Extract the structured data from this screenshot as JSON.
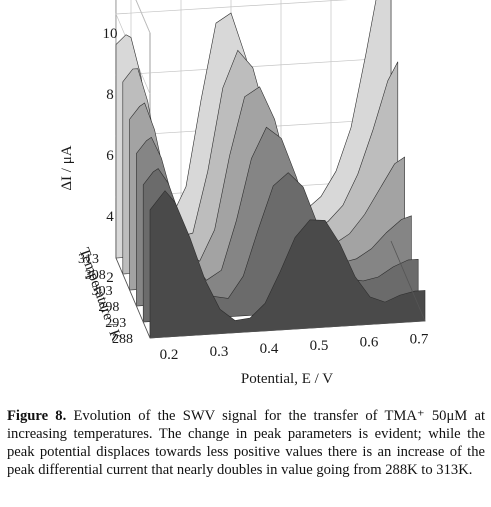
{
  "chart_data": {
    "type": "area",
    "subtype": "3d-waterfall",
    "title": "",
    "xlabel": "Potential, E / V",
    "ylabel": "ΔI / μA",
    "zlabel": "Temperature / K",
    "x_ticks": [
      "0.2",
      "0.3",
      "0.4",
      "0.5",
      "0.6",
      "0.7"
    ],
    "y_ticks": [
      "2",
      "4",
      "6",
      "8",
      "10"
    ],
    "z_ticks": [
      "288",
      "293",
      "298",
      "303",
      "308",
      "313"
    ],
    "xlim": [
      0.17,
      0.72
    ],
    "ylim": [
      0,
      10
    ],
    "grid": true,
    "series_colors": [
      "#4a4a4a",
      "#6b6b6b",
      "#858585",
      "#a3a3a3",
      "#bdbdbd",
      "#d8d8d8"
    ],
    "series": [
      {
        "name": "288",
        "x": [
          0.17,
          0.19,
          0.2,
          0.22,
          0.25,
          0.28,
          0.31,
          0.34,
          0.37,
          0.4,
          0.43,
          0.46,
          0.49,
          0.52,
          0.55,
          0.58,
          0.61,
          0.64,
          0.67,
          0.7,
          0.72
        ],
        "y": [
          4.2,
          4.6,
          4.8,
          4.4,
          3.2,
          1.8,
          0.8,
          0.4,
          0.45,
          0.9,
          1.9,
          3.0,
          3.55,
          3.5,
          2.7,
          1.6,
          0.9,
          0.7,
          0.9,
          1.0,
          1.0
        ]
      },
      {
        "name": "293",
        "x": [
          0.17,
          0.19,
          0.2,
          0.22,
          0.25,
          0.28,
          0.31,
          0.34,
          0.37,
          0.4,
          0.43,
          0.46,
          0.49,
          0.52,
          0.55,
          0.58,
          0.61,
          0.64,
          0.67,
          0.7,
          0.72
        ],
        "y": [
          4.5,
          4.9,
          5.0,
          4.5,
          3.1,
          1.6,
          0.7,
          0.6,
          1.3,
          2.8,
          4.2,
          4.6,
          4.1,
          2.8,
          1.5,
          1.0,
          0.9,
          1.0,
          1.3,
          1.5,
          1.5
        ]
      },
      {
        "name": "298",
        "x": [
          0.17,
          0.19,
          0.2,
          0.22,
          0.25,
          0.28,
          0.31,
          0.34,
          0.37,
          0.4,
          0.43,
          0.46,
          0.49,
          0.52,
          0.55,
          0.58,
          0.61,
          0.64,
          0.67,
          0.7,
          0.72
        ],
        "y": [
          5.0,
          5.4,
          5.5,
          4.8,
          3.0,
          1.4,
          0.7,
          1.0,
          2.6,
          4.6,
          5.6,
          5.2,
          3.9,
          2.3,
          1.2,
          1.0,
          1.1,
          1.4,
          1.9,
          2.3,
          2.4
        ]
      },
      {
        "name": "303",
        "x": [
          0.17,
          0.19,
          0.2,
          0.22,
          0.25,
          0.28,
          0.31,
          0.34,
          0.37,
          0.4,
          0.43,
          0.46,
          0.49,
          0.52,
          0.55,
          0.58,
          0.61,
          0.64,
          0.67,
          0.7,
          0.72
        ],
        "y": [
          5.6,
          6.0,
          6.1,
          5.2,
          2.9,
          1.2,
          0.8,
          1.8,
          4.2,
          6.1,
          6.4,
          5.3,
          3.4,
          1.8,
          1.1,
          1.1,
          1.4,
          2.0,
          2.8,
          3.6,
          3.8
        ]
      },
      {
        "name": "308",
        "x": [
          0.17,
          0.19,
          0.2,
          0.22,
          0.25,
          0.28,
          0.31,
          0.34,
          0.37,
          0.4,
          0.43,
          0.46,
          0.49,
          0.52,
          0.55,
          0.58,
          0.61,
          0.64,
          0.67,
          0.7,
          0.72
        ],
        "y": [
          6.3,
          6.7,
          6.7,
          5.6,
          2.8,
          1.1,
          1.2,
          3.2,
          5.9,
          7.1,
          6.5,
          4.7,
          2.7,
          1.5,
          1.1,
          1.3,
          1.8,
          2.8,
          4.2,
          5.8,
          6.4
        ]
      },
      {
        "name": "313",
        "x": [
          0.17,
          0.19,
          0.2,
          0.22,
          0.25,
          0.28,
          0.31,
          0.34,
          0.37,
          0.4,
          0.43,
          0.46,
          0.49,
          0.52,
          0.55,
          0.58,
          0.61,
          0.64,
          0.67,
          0.7,
          0.72
        ],
        "y": [
          7.0,
          7.3,
          7.2,
          5.9,
          2.7,
          1.2,
          2.2,
          5.0,
          7.5,
          7.8,
          6.3,
          4.0,
          2.2,
          1.3,
          1.2,
          1.6,
          2.4,
          3.8,
          6.2,
          8.8,
          9.8
        ]
      }
    ]
  },
  "caption": {
    "label": "Figure 8.",
    "text": " Evolution of the SWV signal for the transfer of TMA⁺ 50μM at increasing temperatures. The change in peak parameters is evident; while the peak potential displaces towards less positive values there is an increase of the peak differential current that nearly doubles in value going from 288K to 313K."
  }
}
